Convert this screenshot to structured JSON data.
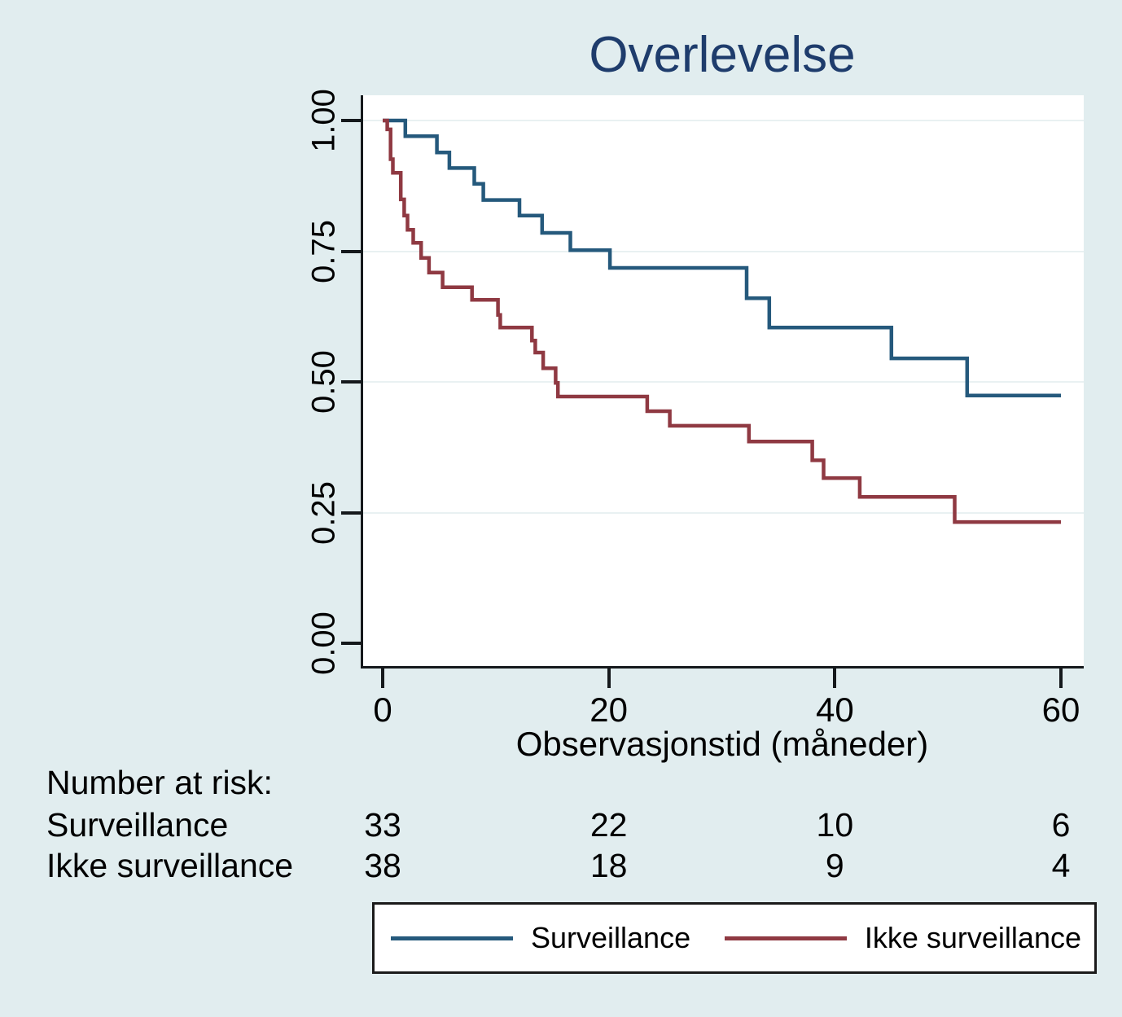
{
  "title": "Overlevelse",
  "colors": {
    "background": "#e1edef",
    "plot_background": "#ffffff",
    "title": "#1e3c6c",
    "axis": "#15191c",
    "gridline": "#e9f1f2",
    "surveillance": "#25597c",
    "ikke_surveillance": "#8f3942"
  },
  "chart_data": {
    "type": "line",
    "subtype": "kaplan-meier-step",
    "title": "Overlevelse",
    "xlabel": "Observasjonstid (måneder)",
    "ylabel": "",
    "xlim": [
      0,
      60
    ],
    "ylim": [
      0.0,
      1.0
    ],
    "x_ticks": [
      0,
      20,
      40,
      60
    ],
    "y_ticks": [
      "0.00",
      "0.25",
      "0.50",
      "0.75",
      "1.00"
    ],
    "grid": "horizontal-at-y-ticks",
    "legend_position": "bottom",
    "series": [
      {
        "name": "Surveillance",
        "color": "#25597c",
        "end_t": 60,
        "steps": [
          [
            0,
            1.0
          ],
          [
            2,
            0.97
          ],
          [
            4.8,
            0.939
          ],
          [
            5.9,
            0.909
          ],
          [
            8.1,
            0.879
          ],
          [
            8.9,
            0.848
          ],
          [
            12.1,
            0.818
          ],
          [
            14.1,
            0.785
          ],
          [
            16.6,
            0.752
          ],
          [
            20.1,
            0.718
          ],
          [
            32.2,
            0.66
          ],
          [
            34.2,
            0.604
          ],
          [
            45,
            0.545
          ],
          [
            51.7,
            0.474
          ]
        ]
      },
      {
        "name": "Ikke surveillance",
        "color": "#8f3942",
        "end_t": 60,
        "steps": [
          [
            0,
            1.0
          ],
          [
            0.4,
            0.983
          ],
          [
            0.7,
            0.926
          ],
          [
            0.9,
            0.9
          ],
          [
            1.6,
            0.849
          ],
          [
            1.9,
            0.818
          ],
          [
            2.2,
            0.791
          ],
          [
            2.7,
            0.766
          ],
          [
            3.4,
            0.737
          ],
          [
            4.1,
            0.709
          ],
          [
            5.3,
            0.681
          ],
          [
            7.9,
            0.657
          ],
          [
            10.2,
            0.628
          ],
          [
            10.4,
            0.604
          ],
          [
            13.2,
            0.579
          ],
          [
            13.5,
            0.556
          ],
          [
            14.2,
            0.526
          ],
          [
            15.3,
            0.498
          ],
          [
            15.5,
            0.472
          ],
          [
            23.4,
            0.444
          ],
          [
            25.4,
            0.416
          ],
          [
            32.4,
            0.386
          ],
          [
            38,
            0.35
          ],
          [
            39,
            0.316
          ],
          [
            42.2,
            0.28
          ],
          [
            50.6,
            0.232
          ]
        ]
      }
    ]
  },
  "risk_table": {
    "heading": "Number at risk:",
    "time_points": [
      0,
      20,
      40,
      60
    ],
    "rows": [
      {
        "label": "Surveillance",
        "counts": [
          "33",
          "22",
          "10",
          "6"
        ]
      },
      {
        "label": "Ikke surveillance",
        "counts": [
          "38",
          "18",
          "9",
          "4"
        ]
      }
    ]
  },
  "legend": {
    "items": [
      {
        "label": "Surveillance",
        "color": "#25597c"
      },
      {
        "label": "Ikke surveillance",
        "color": "#8f3942"
      }
    ]
  }
}
